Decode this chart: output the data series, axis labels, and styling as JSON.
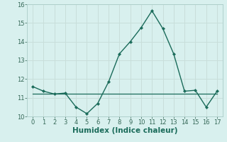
{
  "xlabel": "Humidex (Indice chaleur)",
  "x": [
    0,
    1,
    2,
    3,
    4,
    5,
    6,
    7,
    8,
    9,
    10,
    11,
    12,
    13,
    14,
    15,
    16,
    17
  ],
  "y_main": [
    11.6,
    11.35,
    11.2,
    11.25,
    10.5,
    10.15,
    10.7,
    11.85,
    13.35,
    14.0,
    14.75,
    15.65,
    14.7,
    13.35,
    11.35,
    11.4,
    10.5,
    11.35
  ],
  "y_flat": [
    11.2,
    11.2,
    11.2,
    11.2,
    11.2,
    11.2,
    11.2,
    11.2,
    11.2,
    11.2,
    11.2,
    11.2,
    11.2,
    11.2,
    11.2,
    11.2,
    11.2,
    11.2
  ],
  "line_color": "#1a6b5a",
  "bg_color": "#d8f0ee",
  "grid_color": "#c8deda",
  "ylim": [
    10,
    16
  ],
  "xlim": [
    -0.5,
    17.5
  ],
  "yticks": [
    10,
    11,
    12,
    13,
    14,
    15,
    16
  ],
  "xticks": [
    0,
    1,
    2,
    3,
    4,
    5,
    6,
    7,
    8,
    9,
    10,
    11,
    12,
    13,
    14,
    15,
    16,
    17
  ],
  "tick_color": "#336655",
  "xlabel_color": "#1a6b5a",
  "xlabel_fontsize": 7.5,
  "tick_fontsize": 6.0
}
